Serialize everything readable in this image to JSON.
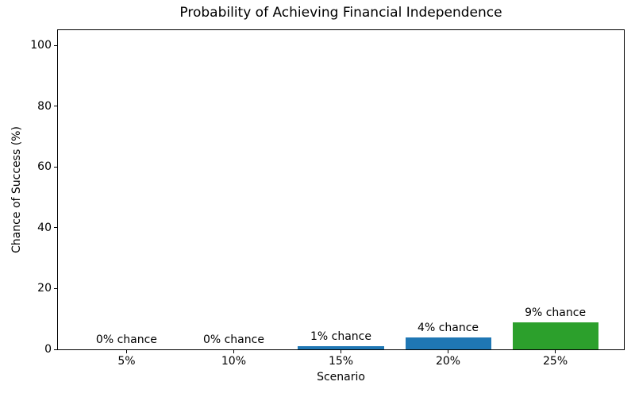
{
  "chart_data": {
    "type": "bar",
    "title": "Probability of Achieving Financial Independence",
    "xlabel": "Scenario",
    "ylabel": "Chance of Success (%)",
    "categories": [
      "5%",
      "10%",
      "15%",
      "20%",
      "25%"
    ],
    "values": [
      0,
      0,
      1,
      4,
      9
    ],
    "bar_labels": [
      "0% chance",
      "0% chance",
      "1% chance",
      "4% chance",
      "9% chance"
    ],
    "bar_colors": [
      "#1f77b4",
      "#1f77b4",
      "#1f77b4",
      "#1f77b4",
      "#2ca02c"
    ],
    "yticks": [
      0,
      20,
      40,
      60,
      80,
      100
    ],
    "ylim": [
      0,
      105
    ],
    "xlim": [
      -0.64,
      4.64
    ],
    "bar_width_units": 0.8,
    "grid": false,
    "legend_position": "none",
    "background_color": "#ffffff",
    "axis_color": "#000000"
  }
}
